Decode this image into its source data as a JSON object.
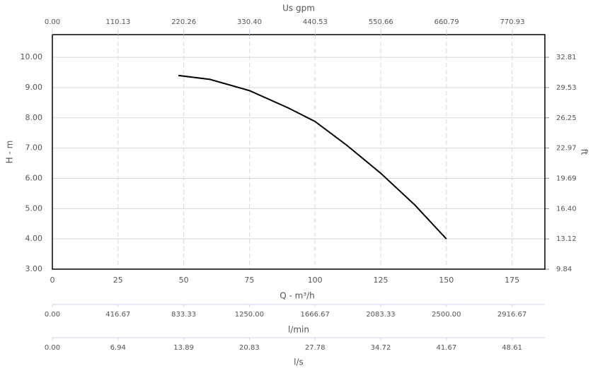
{
  "chart_data": {
    "type": "line",
    "x_label": "Q - m³/h",
    "y_label": "H - m",
    "y2_label": "ft",
    "x": [
      48,
      60,
      75,
      90,
      100,
      112,
      125,
      138,
      150
    ],
    "series": [
      {
        "name": "H",
        "color": "#000000",
        "values": [
          9.4,
          9.27,
          8.9,
          8.32,
          7.88,
          7.1,
          6.17,
          5.12,
          4.0
        ]
      }
    ],
    "xlim": [
      0,
      187.5
    ],
    "xticks": [
      0,
      25,
      50,
      75,
      100,
      125,
      150,
      175
    ],
    "ylim": [
      3,
      10.75
    ],
    "yticks": [
      {
        "value": 3,
        "label": "3.00"
      },
      {
        "value": 4,
        "label": "4.00"
      },
      {
        "value": 5,
        "label": "5.00"
      },
      {
        "value": 6,
        "label": "6.00"
      },
      {
        "value": 7,
        "label": "7.00"
      },
      {
        "value": 8,
        "label": "8.00"
      },
      {
        "value": 9,
        "label": "9.00"
      },
      {
        "value": 10,
        "label": "10.00"
      }
    ],
    "y2lim": [
      9.84,
      35.27
    ],
    "y2ticks": [
      9.84,
      13.12,
      {
        "value": 16.4,
        "label": "16.40"
      },
      19.69,
      22.97,
      26.25,
      29.53,
      32.81
    ],
    "grid": true,
    "extra_axes": [
      {
        "label": "Us gpm",
        "position": "top",
        "lim": [
          0,
          825.55
        ],
        "ticks": [
          {
            "value": 0,
            "label": "0.00"
          },
          110.13,
          220.26,
          {
            "value": 330.4,
            "label": "330.40"
          },
          440.53,
          550.66,
          660.79,
          770.93
        ]
      },
      {
        "label": "l/min",
        "position": "bottom",
        "lim": [
          0,
          3125
        ],
        "ticks": [
          {
            "value": 0,
            "label": "0.00"
          },
          416.67,
          833.33,
          {
            "value": 1250,
            "label": "1250.00"
          },
          1666.67,
          2083.33,
          {
            "value": 2500,
            "label": "2500.00"
          },
          2916.67
        ]
      },
      {
        "label": "l/s",
        "position": "bottom",
        "lim": [
          0,
          52.08
        ],
        "ticks": [
          {
            "value": 0,
            "label": "0.00"
          },
          6.94,
          13.89,
          20.83,
          27.78,
          34.72,
          41.67,
          48.61
        ]
      }
    ]
  }
}
